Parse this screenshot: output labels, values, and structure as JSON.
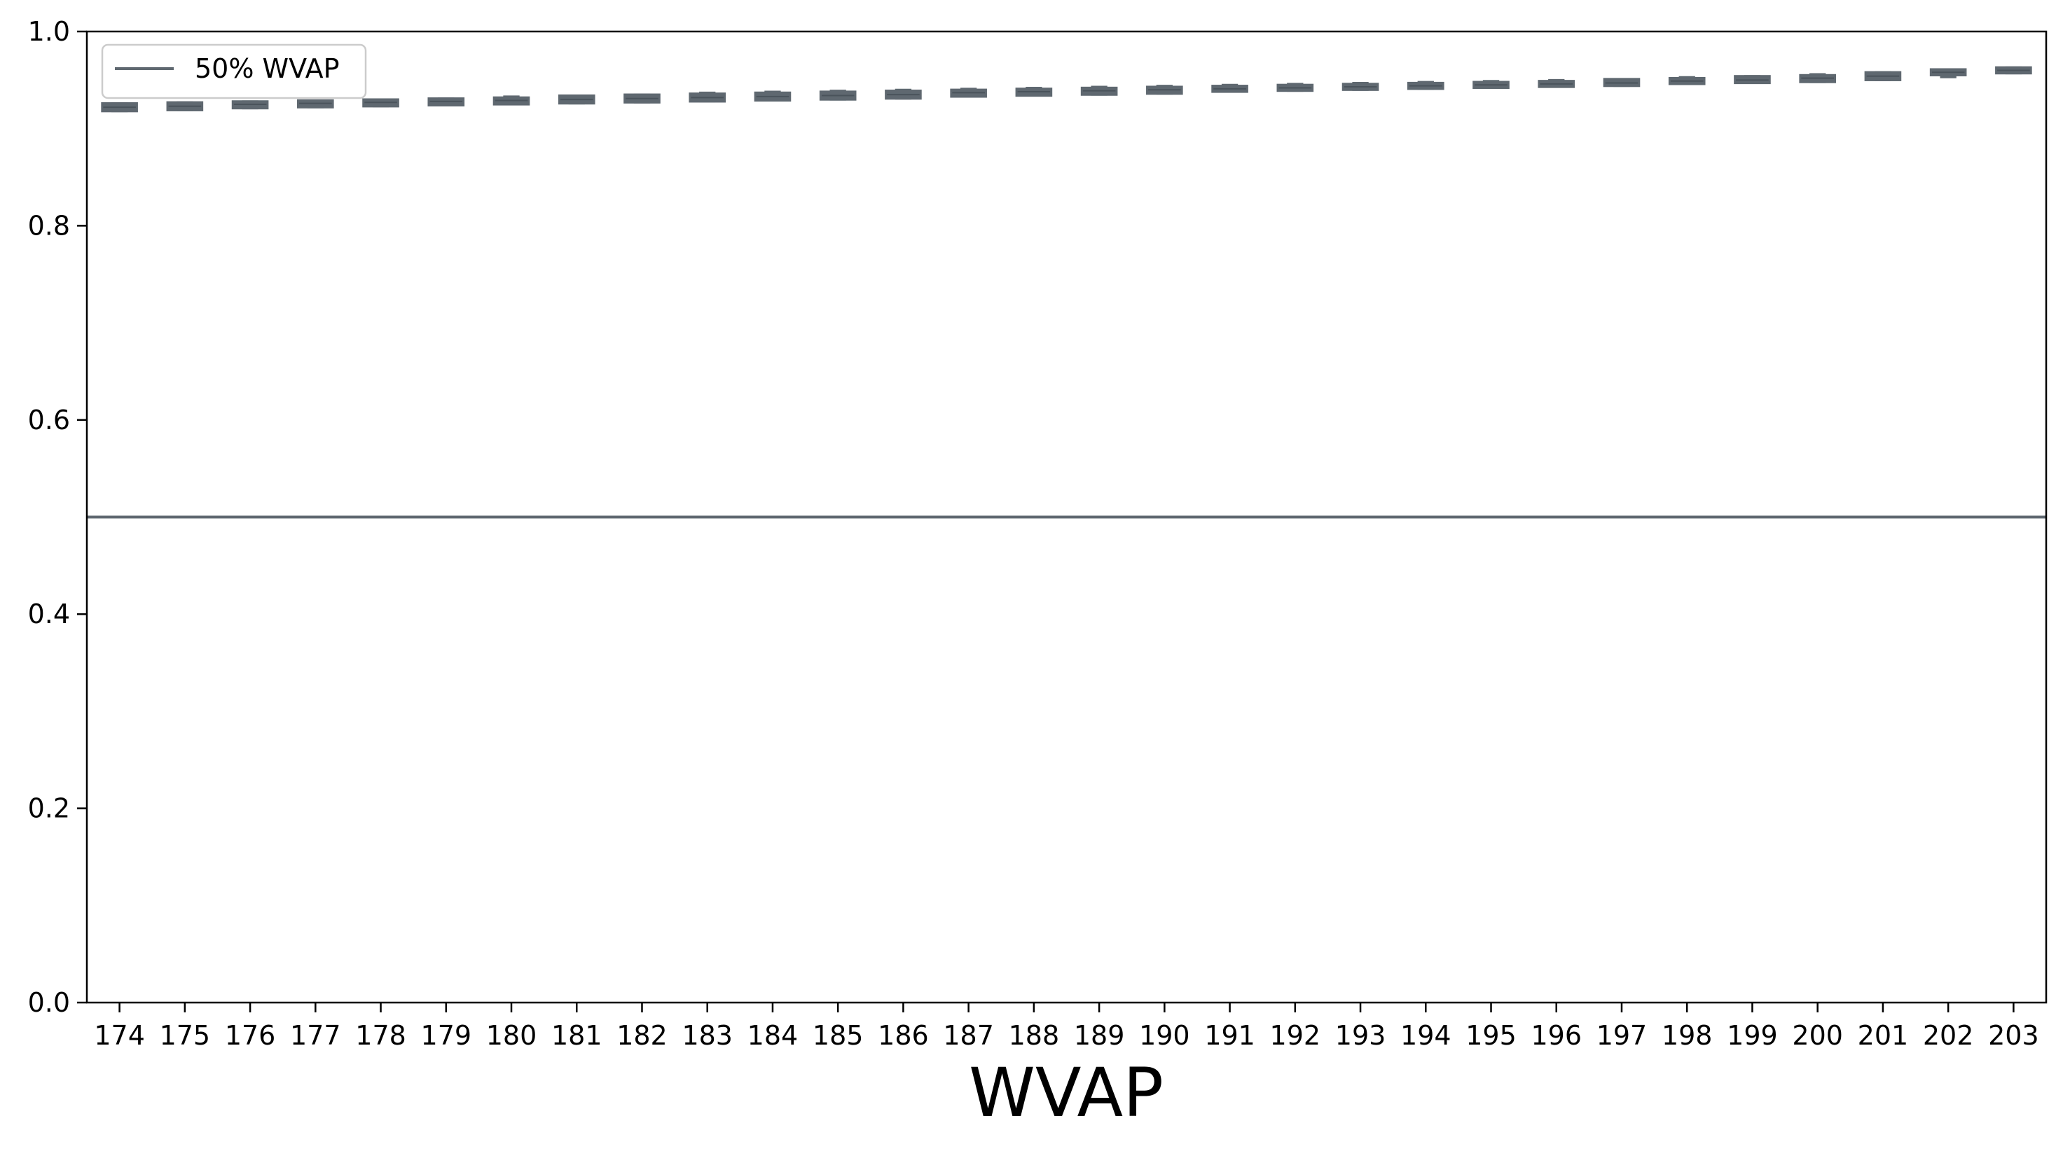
{
  "chart_data": {
    "type": "box",
    "xlabel": "WVAP",
    "ylabel": "",
    "title": "",
    "ylim": [
      0,
      1
    ],
    "yticks": [
      "0.0",
      "0.2",
      "0.4",
      "0.6",
      "0.8",
      "1.0"
    ],
    "ytick_values": [
      0,
      0.2,
      0.4,
      0.6,
      0.8,
      1.0
    ],
    "categories": [
      "174",
      "175",
      "176",
      "177",
      "178",
      "179",
      "180",
      "181",
      "182",
      "183",
      "184",
      "185",
      "186",
      "187",
      "188",
      "189",
      "190",
      "191",
      "192",
      "193",
      "194",
      "195",
      "196",
      "197",
      "198",
      "199",
      "200",
      "201",
      "202",
      "203"
    ],
    "boxes": [
      {
        "q1": 0.919,
        "median": 0.922,
        "q3": 0.925,
        "whisker_low": 0.918,
        "whisker_high": 0.926
      },
      {
        "q1": 0.92,
        "median": 0.923,
        "q3": 0.926,
        "whisker_low": 0.919,
        "whisker_high": 0.927
      },
      {
        "q1": 0.922,
        "median": 0.925,
        "q3": 0.927,
        "whisker_low": 0.921,
        "whisker_high": 0.928
      },
      {
        "q1": 0.923,
        "median": 0.926,
        "q3": 0.928,
        "whisker_low": 0.922,
        "whisker_high": 0.929
      },
      {
        "q1": 0.924,
        "median": 0.927,
        "q3": 0.929,
        "whisker_low": 0.923,
        "whisker_high": 0.93
      },
      {
        "q1": 0.925,
        "median": 0.928,
        "q3": 0.93,
        "whisker_low": 0.924,
        "whisker_high": 0.931
      },
      {
        "q1": 0.926,
        "median": 0.929,
        "q3": 0.931,
        "whisker_low": 0.925,
        "whisker_high": 0.933
      },
      {
        "q1": 0.927,
        "median": 0.93,
        "q3": 0.933,
        "whisker_low": 0.926,
        "whisker_high": 0.934
      },
      {
        "q1": 0.928,
        "median": 0.931,
        "q3": 0.934,
        "whisker_low": 0.927,
        "whisker_high": 0.935
      },
      {
        "q1": 0.929,
        "median": 0.932,
        "q3": 0.935,
        "whisker_low": 0.928,
        "whisker_high": 0.937
      },
      {
        "q1": 0.93,
        "median": 0.933,
        "q3": 0.936,
        "whisker_low": 0.929,
        "whisker_high": 0.938
      },
      {
        "q1": 0.931,
        "median": 0.934,
        "q3": 0.937,
        "whisker_low": 0.93,
        "whisker_high": 0.939
      },
      {
        "q1": 0.932,
        "median": 0.935,
        "q3": 0.938,
        "whisker_low": 0.931,
        "whisker_high": 0.94
      },
      {
        "q1": 0.934,
        "median": 0.937,
        "q3": 0.939,
        "whisker_low": 0.933,
        "whisker_high": 0.941
      },
      {
        "q1": 0.935,
        "median": 0.938,
        "q3": 0.94,
        "whisker_low": 0.934,
        "whisker_high": 0.942
      },
      {
        "q1": 0.936,
        "median": 0.939,
        "q3": 0.941,
        "whisker_low": 0.935,
        "whisker_high": 0.943
      },
      {
        "q1": 0.937,
        "median": 0.94,
        "q3": 0.942,
        "whisker_low": 0.936,
        "whisker_high": 0.944
      },
      {
        "q1": 0.939,
        "median": 0.941,
        "q3": 0.943,
        "whisker_low": 0.938,
        "whisker_high": 0.945
      },
      {
        "q1": 0.94,
        "median": 0.942,
        "q3": 0.944,
        "whisker_low": 0.939,
        "whisker_high": 0.946
      },
      {
        "q1": 0.941,
        "median": 0.943,
        "q3": 0.945,
        "whisker_low": 0.94,
        "whisker_high": 0.947
      },
      {
        "q1": 0.942,
        "median": 0.944,
        "q3": 0.946,
        "whisker_low": 0.941,
        "whisker_high": 0.948
      },
      {
        "q1": 0.943,
        "median": 0.945,
        "q3": 0.947,
        "whisker_low": 0.942,
        "whisker_high": 0.949
      },
      {
        "q1": 0.944,
        "median": 0.946,
        "q3": 0.948,
        "whisker_low": 0.943,
        "whisker_high": 0.95
      },
      {
        "q1": 0.945,
        "median": 0.947,
        "q3": 0.95,
        "whisker_low": 0.944,
        "whisker_high": 0.951
      },
      {
        "q1": 0.947,
        "median": 0.949,
        "q3": 0.951,
        "whisker_low": 0.946,
        "whisker_high": 0.953
      },
      {
        "q1": 0.948,
        "median": 0.95,
        "q3": 0.953,
        "whisker_low": 0.947,
        "whisker_high": 0.954
      },
      {
        "q1": 0.949,
        "median": 0.952,
        "q3": 0.954,
        "whisker_low": 0.948,
        "whisker_high": 0.956
      },
      {
        "q1": 0.951,
        "median": 0.954,
        "q3": 0.957,
        "whisker_low": 0.95,
        "whisker_high": 0.958
      },
      {
        "q1": 0.956,
        "median": 0.958,
        "q3": 0.96,
        "whisker_low": 0.953,
        "whisker_high": 0.961
      },
      {
        "q1": 0.958,
        "median": 0.96,
        "q3": 0.962,
        "whisker_low": 0.957,
        "whisker_high": 0.963
      }
    ],
    "reference_lines": [
      {
        "name": "50% WVAP",
        "y": 0.5
      }
    ],
    "legend": {
      "entries": [
        "50% WVAP"
      ],
      "placement": "top-left"
    },
    "grid": false,
    "colors": {
      "box": "#5f6870",
      "reference_line": "#5f6870",
      "axis": "#000000"
    }
  }
}
